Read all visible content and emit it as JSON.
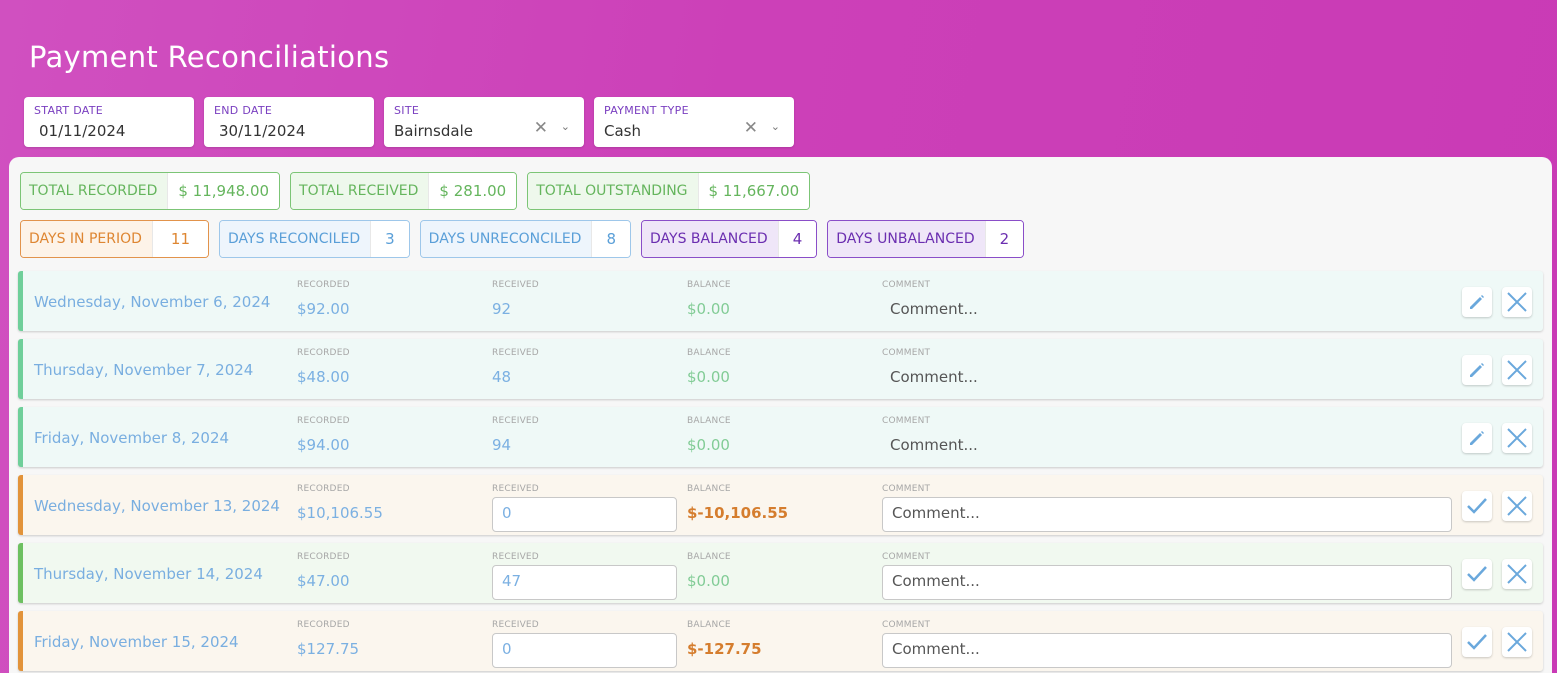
{
  "page": {
    "title": "Payment Reconciliations"
  },
  "filters": {
    "start_date": {
      "label": "START DATE",
      "value": "01/11/2024"
    },
    "end_date": {
      "label": "END DATE",
      "value": "30/11/2024"
    },
    "site": {
      "label": "SITE",
      "value": "Bairnsdale"
    },
    "payment_type": {
      "label": "PAYMENT TYPE",
      "value": "Cash"
    }
  },
  "totals": [
    {
      "label": "TOTAL RECORDED",
      "value": "$ 11,948.00"
    },
    {
      "label": "TOTAL RECEIVED",
      "value": "$ 281.00"
    },
    {
      "label": "TOTAL OUTSTANDING",
      "value": "$ 11,667.00"
    }
  ],
  "day_stats": [
    {
      "label": "DAYS IN PERIOD",
      "value": "11"
    },
    {
      "label": "DAYS RECONCILED",
      "value": "3"
    },
    {
      "label": "DAYS UNRECONCILED",
      "value": "8"
    },
    {
      "label": "DAYS BALANCED",
      "value": "4"
    },
    {
      "label": "DAYS UNBALANCED",
      "value": "2"
    }
  ],
  "columns": {
    "recorded": "RECORDED",
    "received": "RECEIVED",
    "balance": "BALANCE",
    "comment": "COMMENT"
  },
  "comment_placeholder": "Comment...",
  "rows": [
    {
      "date": "Wednesday, November 6, 2024",
      "recorded": "$92.00",
      "received": "92",
      "balance": "$0.00"
    },
    {
      "date": "Thursday, November 7, 2024",
      "recorded": "$48.00",
      "received": "48",
      "balance": "$0.00"
    },
    {
      "date": "Friday, November 8, 2024",
      "recorded": "$94.00",
      "received": "94",
      "balance": "$0.00"
    },
    {
      "date": "Wednesday, November 13, 2024",
      "recorded": "$10,106.55",
      "received": "0",
      "balance": "$-10,106.55"
    },
    {
      "date": "Thursday, November 14, 2024",
      "recorded": "$47.00",
      "received": "47",
      "balance": "$0.00"
    },
    {
      "date": "Friday, November 15, 2024",
      "recorded": "$127.75",
      "received": "0",
      "balance": "$-127.75"
    }
  ],
  "colors": {
    "accent_purple": "#7a3fc0",
    "balanced_green": "#6fcf9a",
    "pending_orange": "#e2933a",
    "reconciled_blue": "#5a9fd8"
  },
  "icons": {
    "edit": "pencil-icon",
    "cancel": "close-icon",
    "confirm": "checkmark-icon"
  }
}
